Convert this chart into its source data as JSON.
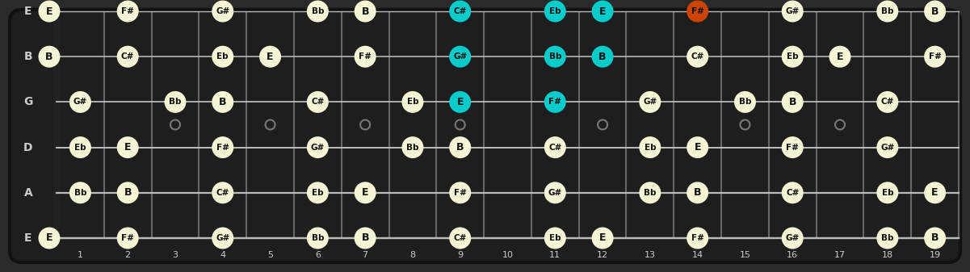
{
  "bg_color": "#2a2a2a",
  "fret_color": "#666666",
  "string_color": "#bbbbbb",
  "nut_color": "#111111",
  "note_fill_normal": "#f5f5d5",
  "note_fill_cyan": "#00cccc",
  "note_fill_orange": "#cc4400",
  "note_text_color": "#111111",
  "string_label_color": "#cccccc",
  "fret_label_color": "#cccccc",
  "strings": [
    "E",
    "B",
    "G",
    "D",
    "A",
    "E"
  ],
  "num_frets": 19,
  "notes": [
    {
      "string": 0,
      "fret": 0,
      "label": "E",
      "color": "normal"
    },
    {
      "string": 0,
      "fret": 2,
      "label": "F#",
      "color": "normal"
    },
    {
      "string": 0,
      "fret": 4,
      "label": "G#",
      "color": "normal"
    },
    {
      "string": 0,
      "fret": 6,
      "label": "Bb",
      "color": "normal"
    },
    {
      "string": 0,
      "fret": 7,
      "label": "B",
      "color": "normal"
    },
    {
      "string": 0,
      "fret": 9,
      "label": "C#",
      "color": "cyan"
    },
    {
      "string": 0,
      "fret": 11,
      "label": "Eb",
      "color": "cyan"
    },
    {
      "string": 0,
      "fret": 12,
      "label": "E",
      "color": "cyan"
    },
    {
      "string": 0,
      "fret": 14,
      "label": "F#",
      "color": "orange"
    },
    {
      "string": 0,
      "fret": 16,
      "label": "G#",
      "color": "normal"
    },
    {
      "string": 0,
      "fret": 18,
      "label": "Bb",
      "color": "normal"
    },
    {
      "string": 0,
      "fret": 19,
      "label": "B",
      "color": "normal"
    },
    {
      "string": 1,
      "fret": 0,
      "label": "B",
      "color": "normal"
    },
    {
      "string": 1,
      "fret": 2,
      "label": "C#",
      "color": "normal"
    },
    {
      "string": 1,
      "fret": 4,
      "label": "Eb",
      "color": "normal"
    },
    {
      "string": 1,
      "fret": 5,
      "label": "E",
      "color": "normal"
    },
    {
      "string": 1,
      "fret": 7,
      "label": "F#",
      "color": "normal"
    },
    {
      "string": 1,
      "fret": 9,
      "label": "G#",
      "color": "cyan"
    },
    {
      "string": 1,
      "fret": 11,
      "label": "Bb",
      "color": "cyan"
    },
    {
      "string": 1,
      "fret": 12,
      "label": "B",
      "color": "cyan"
    },
    {
      "string": 1,
      "fret": 14,
      "label": "C#",
      "color": "normal"
    },
    {
      "string": 1,
      "fret": 16,
      "label": "Eb",
      "color": "normal"
    },
    {
      "string": 1,
      "fret": 17,
      "label": "E",
      "color": "normal"
    },
    {
      "string": 1,
      "fret": 19,
      "label": "F#",
      "color": "normal"
    },
    {
      "string": 2,
      "fret": 1,
      "label": "G#",
      "color": "normal"
    },
    {
      "string": 2,
      "fret": 3,
      "label": "Bb",
      "color": "normal"
    },
    {
      "string": 2,
      "fret": 4,
      "label": "B",
      "color": "normal"
    },
    {
      "string": 2,
      "fret": 6,
      "label": "C#",
      "color": "normal"
    },
    {
      "string": 2,
      "fret": 8,
      "label": "Eb",
      "color": "normal"
    },
    {
      "string": 2,
      "fret": 9,
      "label": "E",
      "color": "cyan"
    },
    {
      "string": 2,
      "fret": 11,
      "label": "F#",
      "color": "cyan"
    },
    {
      "string": 2,
      "fret": 13,
      "label": "G#",
      "color": "normal"
    },
    {
      "string": 2,
      "fret": 15,
      "label": "Bb",
      "color": "normal"
    },
    {
      "string": 2,
      "fret": 16,
      "label": "B",
      "color": "normal"
    },
    {
      "string": 2,
      "fret": 18,
      "label": "C#",
      "color": "normal"
    },
    {
      "string": 3,
      "fret": 1,
      "label": "Eb",
      "color": "normal"
    },
    {
      "string": 3,
      "fret": 2,
      "label": "E",
      "color": "normal"
    },
    {
      "string": 3,
      "fret": 4,
      "label": "F#",
      "color": "normal"
    },
    {
      "string": 3,
      "fret": 6,
      "label": "G#",
      "color": "normal"
    },
    {
      "string": 3,
      "fret": 8,
      "label": "Bb",
      "color": "normal"
    },
    {
      "string": 3,
      "fret": 9,
      "label": "B",
      "color": "normal"
    },
    {
      "string": 3,
      "fret": 11,
      "label": "C#",
      "color": "normal"
    },
    {
      "string": 3,
      "fret": 13,
      "label": "Eb",
      "color": "normal"
    },
    {
      "string": 3,
      "fret": 14,
      "label": "E",
      "color": "normal"
    },
    {
      "string": 3,
      "fret": 16,
      "label": "F#",
      "color": "normal"
    },
    {
      "string": 3,
      "fret": 18,
      "label": "G#",
      "color": "normal"
    },
    {
      "string": 4,
      "fret": 1,
      "label": "Bb",
      "color": "normal"
    },
    {
      "string": 4,
      "fret": 2,
      "label": "B",
      "color": "normal"
    },
    {
      "string": 4,
      "fret": 4,
      "label": "C#",
      "color": "normal"
    },
    {
      "string": 4,
      "fret": 6,
      "label": "Eb",
      "color": "normal"
    },
    {
      "string": 4,
      "fret": 7,
      "label": "E",
      "color": "normal"
    },
    {
      "string": 4,
      "fret": 9,
      "label": "F#",
      "color": "normal"
    },
    {
      "string": 4,
      "fret": 11,
      "label": "G#",
      "color": "normal"
    },
    {
      "string": 4,
      "fret": 13,
      "label": "Bb",
      "color": "normal"
    },
    {
      "string": 4,
      "fret": 14,
      "label": "B",
      "color": "normal"
    },
    {
      "string": 4,
      "fret": 16,
      "label": "C#",
      "color": "normal"
    },
    {
      "string": 4,
      "fret": 18,
      "label": "Eb",
      "color": "normal"
    },
    {
      "string": 4,
      "fret": 19,
      "label": "E",
      "color": "normal"
    },
    {
      "string": 5,
      "fret": 0,
      "label": "E",
      "color": "normal"
    },
    {
      "string": 5,
      "fret": 2,
      "label": "F#",
      "color": "normal"
    },
    {
      "string": 5,
      "fret": 4,
      "label": "G#",
      "color": "normal"
    },
    {
      "string": 5,
      "fret": 6,
      "label": "Bb",
      "color": "normal"
    },
    {
      "string": 5,
      "fret": 7,
      "label": "B",
      "color": "normal"
    },
    {
      "string": 5,
      "fret": 9,
      "label": "C#",
      "color": "normal"
    },
    {
      "string": 5,
      "fret": 11,
      "label": "Eb",
      "color": "normal"
    },
    {
      "string": 5,
      "fret": 12,
      "label": "E",
      "color": "normal"
    },
    {
      "string": 5,
      "fret": 14,
      "label": "F#",
      "color": "normal"
    },
    {
      "string": 5,
      "fret": 16,
      "label": "G#",
      "color": "normal"
    },
    {
      "string": 5,
      "fret": 18,
      "label": "Bb",
      "color": "normal"
    },
    {
      "string": 5,
      "fret": 19,
      "label": "B",
      "color": "normal"
    }
  ],
  "position_dot_frets": [
    3,
    5,
    7,
    9,
    12,
    15,
    17
  ]
}
